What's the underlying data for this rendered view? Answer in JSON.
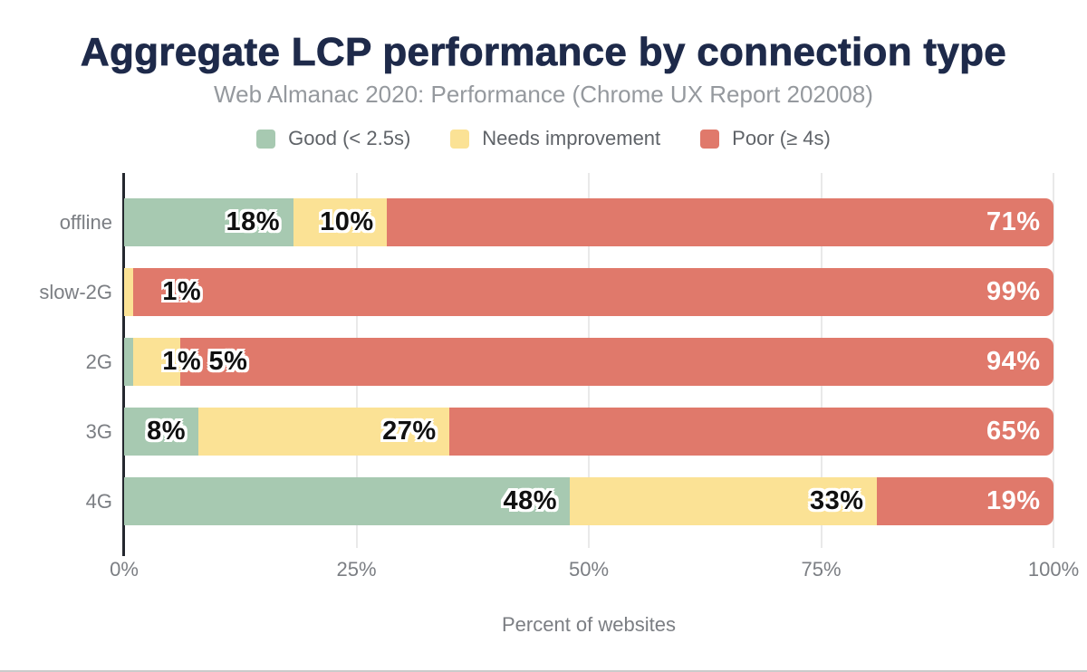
{
  "title": "Aggregate LCP performance by connection type",
  "subtitle": "Web Almanac 2020: Performance (Chrome UX Report 202008)",
  "legend": [
    {
      "label": "Good (< 2.5s)",
      "color": "#a7c9b1"
    },
    {
      "label": "Needs improvement",
      "color": "#fbe295"
    },
    {
      "label": "Poor (≥ 4s)",
      "color": "#e0796b"
    }
  ],
  "colors": {
    "title": "#1e2a4a",
    "subtitle": "#95999e",
    "axis": "#24272e",
    "gridline": "#e9e9e9",
    "tick_text": "#7b7e83"
  },
  "chart_data": {
    "type": "bar",
    "orientation": "horizontal",
    "stacked": true,
    "title": "Aggregate LCP performance by connection type",
    "subtitle": "Web Almanac 2020: Performance (Chrome UX Report 202008)",
    "categories": [
      "offline",
      "slow-2G",
      "2G",
      "3G",
      "4G"
    ],
    "series": [
      {
        "name": "Good (< 2.5s)",
        "color": "#a7c9b1",
        "values": [
          18,
          0,
          1,
          8,
          48
        ]
      },
      {
        "name": "Needs improvement",
        "color": "#fbe295",
        "values": [
          10,
          1,
          5,
          27,
          33
        ]
      },
      {
        "name": "Poor (≥ 4s)",
        "color": "#e0796b",
        "values": [
          71,
          99,
          94,
          65,
          19
        ]
      }
    ],
    "data_label_format": "{value}%",
    "x_ticks": [
      "0%",
      "25%",
      "50%",
      "75%",
      "100%"
    ],
    "xlabel": "Percent of websites",
    "xlim": [
      0,
      100
    ],
    "grid": true,
    "legend_position": "top"
  }
}
